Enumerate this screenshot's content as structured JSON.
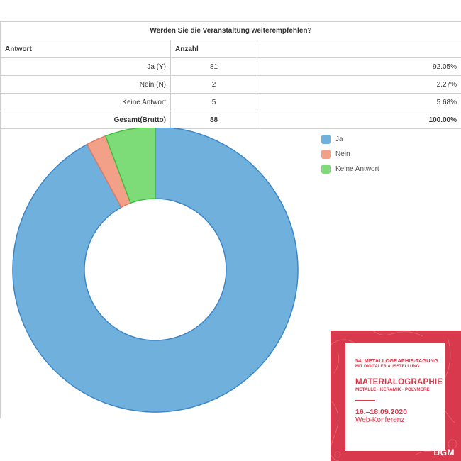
{
  "table": {
    "title": "Werden Sie die Veranstaltung weiterempfehlen?",
    "header_answer": "Antwort",
    "header_count": "Anzahl",
    "rows": [
      {
        "label": "Ja (Y)",
        "count": "81",
        "percent": "92.05%"
      },
      {
        "label": "Nein (N)",
        "count": "2",
        "percent": "2.27%"
      },
      {
        "label": "Keine Antwort",
        "count": "5",
        "percent": "5.68%"
      }
    ],
    "total": {
      "label": "Gesamt(Brutto)",
      "count": "88",
      "percent": "100.00%"
    }
  },
  "chart_data": {
    "type": "pie",
    "donut": true,
    "categories": [
      "Ja",
      "Nein",
      "Keine Antwort"
    ],
    "values": [
      81,
      2,
      5
    ],
    "colors": [
      "#6fb0dd",
      "#f2a087",
      "#7ddc77"
    ],
    "stroke_colors": [
      "#3d86c6",
      "#e07a5f",
      "#3fbf3f"
    ],
    "legend_position": "top-right"
  },
  "banner": {
    "line1": "54. METALLOGRAPHIE-TAGUNG",
    "line2": "MIT DIGITALER AUSSTELLUNG",
    "title": "MATERIALOGRAPHIE",
    "subtitle": "METALLE · KERAMIK · POLYMERE",
    "date": "16.–18.09.2020",
    "conference": "Web-Konferenz",
    "logo": "DGM",
    "color": "#d8394c"
  }
}
